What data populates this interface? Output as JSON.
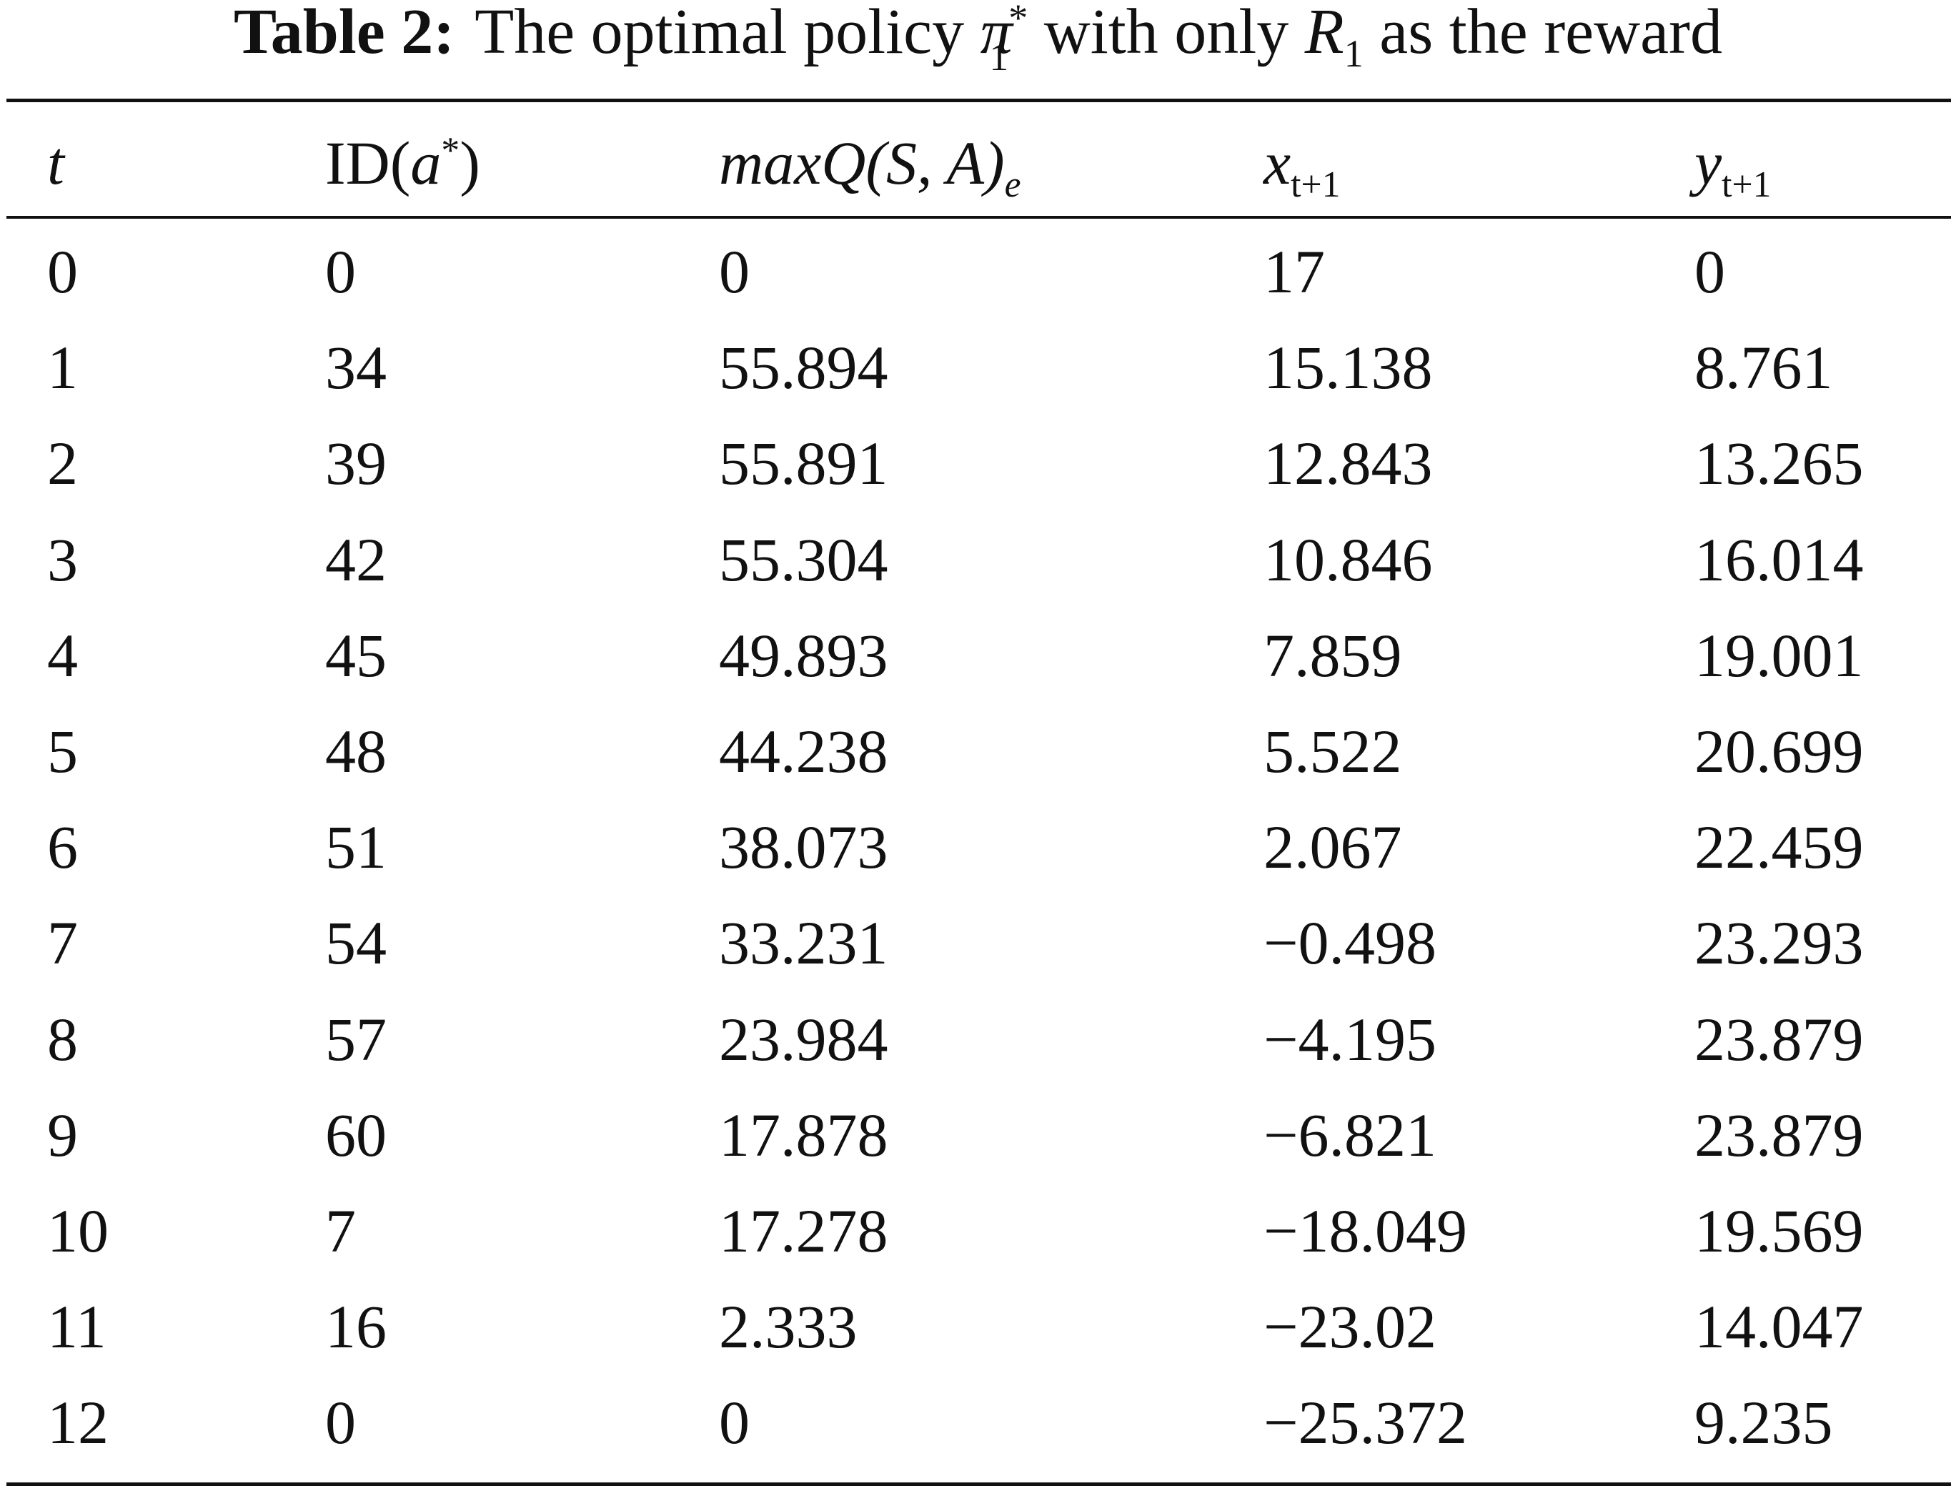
{
  "caption": {
    "label": "Table 2:",
    "text1": "The optimal policy",
    "pi": "π",
    "pi_sub": "1",
    "pi_sup": "*",
    "text2": "with only",
    "r": "R",
    "r_sub": "1",
    "text3": "as the reward"
  },
  "table": {
    "header": [
      {
        "main": "t"
      },
      {
        "pre": "ID(",
        "main": "a",
        "sup": "*",
        "post": ")"
      },
      {
        "main": "maxQ",
        "post": "(S, A)",
        "sub": "e"
      },
      {
        "main": "x",
        "sub": "t+1"
      },
      {
        "main": "y",
        "sub": "t+1"
      }
    ],
    "rows": [
      [
        "0",
        "0",
        "0",
        "17",
        "0"
      ],
      [
        "1",
        "34",
        "55.894",
        "15.138",
        "8.761"
      ],
      [
        "2",
        "39",
        "55.891",
        "12.843",
        "13.265"
      ],
      [
        "3",
        "42",
        "55.304",
        "10.846",
        "16.014"
      ],
      [
        "4",
        "45",
        "49.893",
        "7.859",
        "19.001"
      ],
      [
        "5",
        "48",
        "44.238",
        "5.522",
        "20.699"
      ],
      [
        "6",
        "51",
        "38.073",
        "2.067",
        "22.459"
      ],
      [
        "7",
        "54",
        "33.231",
        "−0.498",
        "23.293"
      ],
      [
        "8",
        "57",
        "23.984",
        "−4.195",
        "23.879"
      ],
      [
        "9",
        "60",
        "17.878",
        "−6.821",
        "23.879"
      ],
      [
        "10",
        "7",
        "17.278",
        "−18.049",
        "19.569"
      ],
      [
        "11",
        "16",
        "2.333",
        "−23.02",
        "14.047"
      ],
      [
        "12",
        "0",
        "0",
        "−25.372",
        "9.235"
      ]
    ]
  }
}
